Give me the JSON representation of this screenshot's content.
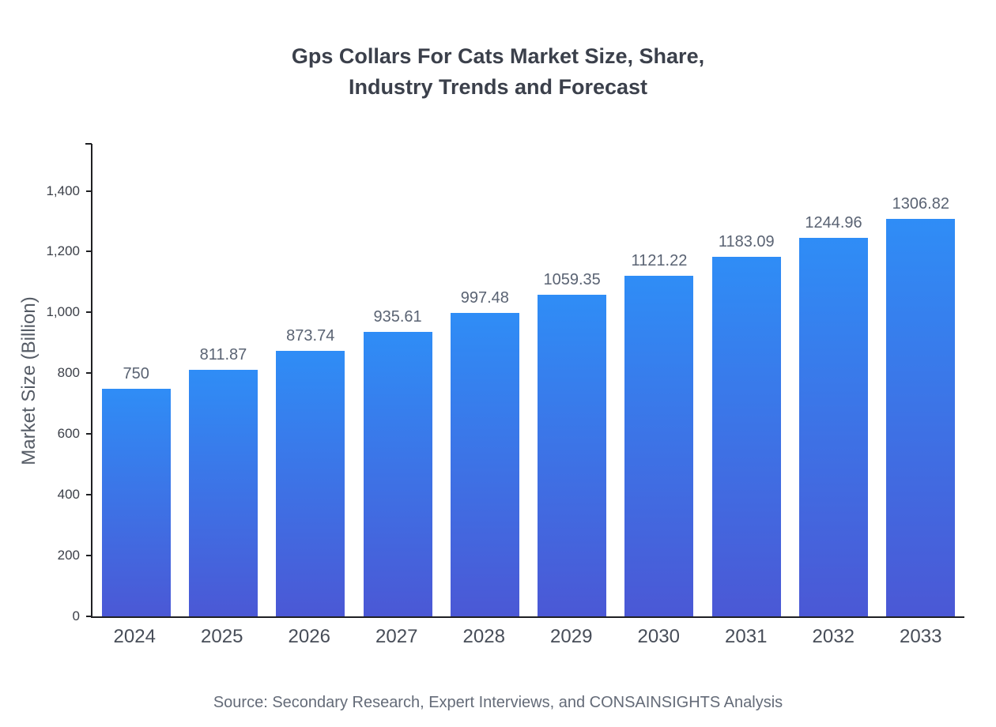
{
  "title": {
    "line1": "Gps Collars For Cats Market Size, Share,",
    "line2": "Industry Trends and Forecast"
  },
  "chart_data": {
    "type": "bar",
    "title": "Gps Collars For Cats Market Size, Share, Industry Trends and Forecast",
    "categories": [
      "2024",
      "2025",
      "2026",
      "2027",
      "2028",
      "2029",
      "2030",
      "2031",
      "2032",
      "2033"
    ],
    "values": [
      750,
      811.87,
      873.74,
      935.61,
      997.48,
      1059.35,
      1121.22,
      1183.09,
      1244.96,
      1306.82
    ],
    "value_labels": [
      "750",
      "811.87",
      "873.74",
      "935.61",
      "997.48",
      "1059.35",
      "1121.22",
      "1183.09",
      "1244.96",
      "1306.82"
    ],
    "xlabel": "",
    "ylabel": "Market Size (Billion)",
    "ylim": [
      0,
      1560
    ],
    "yticks": [
      0,
      200,
      400,
      600,
      800,
      1000,
      1200,
      1400
    ],
    "ytick_labels": [
      "0",
      "200",
      "400",
      "600",
      "800",
      "1,000",
      "1,200",
      "1,400"
    ],
    "grid": false,
    "legend_position": "none",
    "bar_color_top": "#2f8df6",
    "bar_color_bottom": "#4b58d5"
  },
  "footer": {
    "source": "Source: Secondary Research, Expert Interviews, and CONSAINSIGHTS Analysis"
  }
}
